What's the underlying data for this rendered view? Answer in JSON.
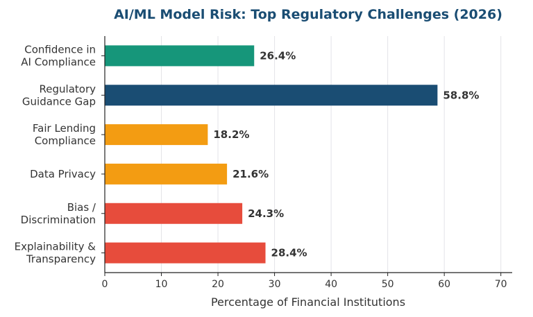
{
  "chart_data": {
    "type": "bar",
    "orientation": "horizontal",
    "title": "AI/ML Model Risk: Top Regulatory Challenges (2026)",
    "xlabel": "Percentage of Financial Institutions",
    "ylabel": "",
    "xlim": [
      0,
      72
    ],
    "xticks": [
      0,
      10,
      20,
      30,
      40,
      50,
      60,
      70
    ],
    "grid": "vertical",
    "categories": [
      [
        "Confidence in",
        "AI Compliance"
      ],
      [
        "Regulatory",
        "Guidance Gap"
      ],
      [
        "Fair Lending",
        "Compliance"
      ],
      [
        "Data Privacy"
      ],
      [
        "Bias /",
        "Discrimination"
      ],
      [
        "Explainability &",
        "Transparency"
      ]
    ],
    "values": [
      26.4,
      58.8,
      18.2,
      21.6,
      24.3,
      28.4
    ],
    "value_labels": [
      "26.4%",
      "58.8%",
      "18.2%",
      "21.6%",
      "24.3%",
      "28.4%"
    ],
    "colors": [
      "#16967a",
      "#1a4d73",
      "#f39c12",
      "#f39c12",
      "#e74c3c",
      "#e74c3c"
    ]
  }
}
